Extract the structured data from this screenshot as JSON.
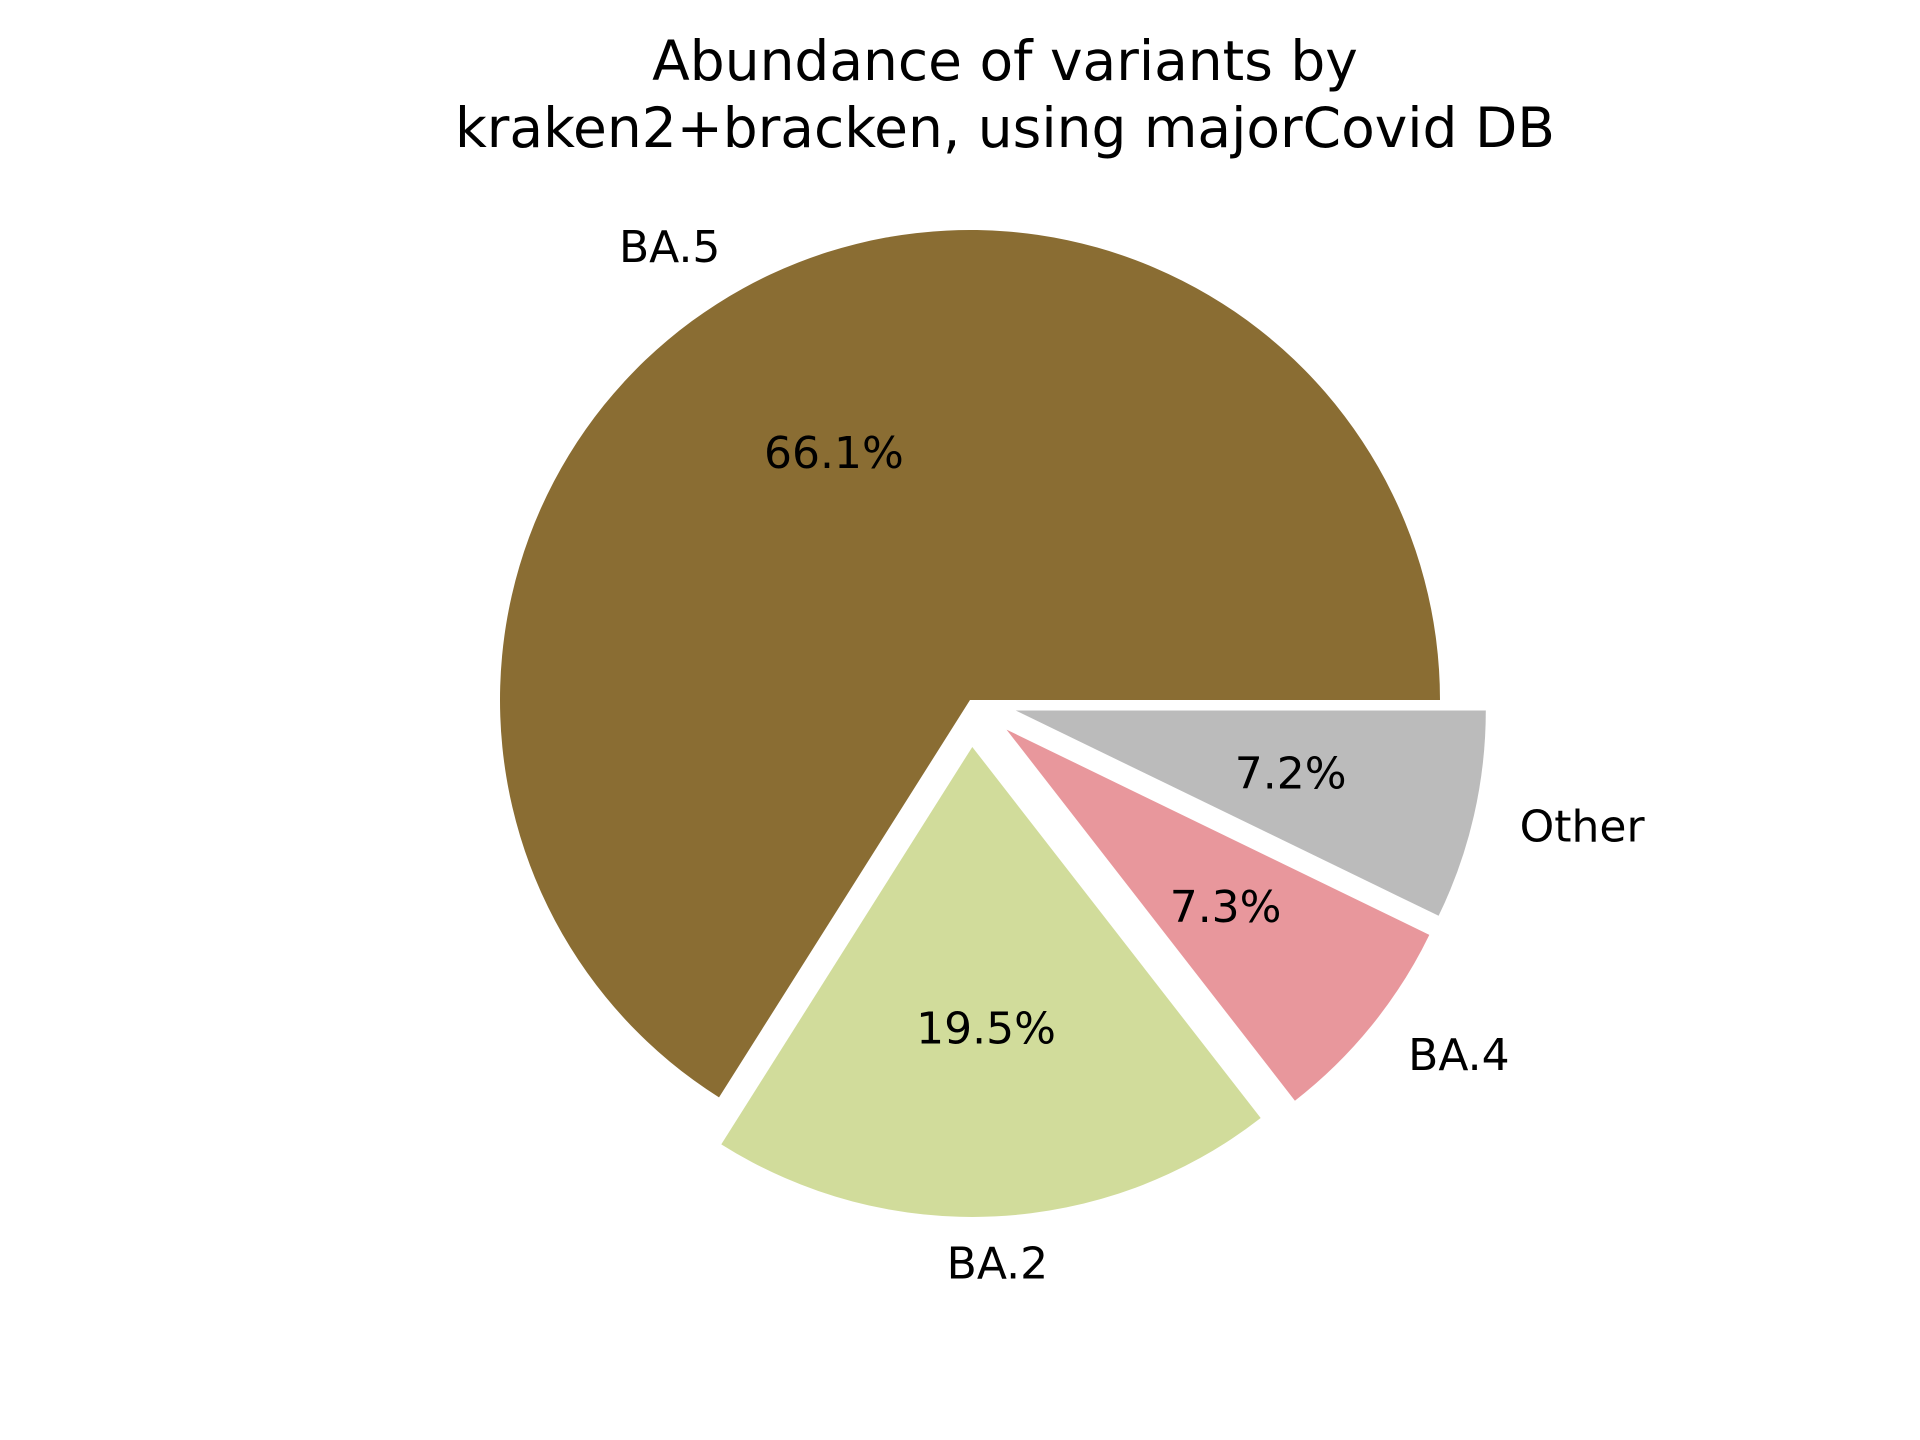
{
  "chart_data": {
    "type": "pie",
    "title_lines": [
      "Abundance of variants by",
      "kraken2+bracken, using majorCovid DB"
    ],
    "slices": [
      {
        "label": "BA.5",
        "value": 66.1,
        "pct_label": "66.1%",
        "color": "#8a6d33",
        "exploded": false
      },
      {
        "label": "BA.2",
        "value": 19.5,
        "pct_label": "19.5%",
        "color": "#d1dc9b",
        "exploded": true
      },
      {
        "label": "BA.4",
        "value": 7.3,
        "pct_label": "7.3%",
        "color": "#e8979c",
        "exploded": true
      },
      {
        "label": "Other",
        "value": 7.2,
        "pct_label": "7.2%",
        "color": "#bbbbbb",
        "exploded": true
      }
    ],
    "start_angle_deg": 0,
    "direction": "counterclockwise"
  }
}
